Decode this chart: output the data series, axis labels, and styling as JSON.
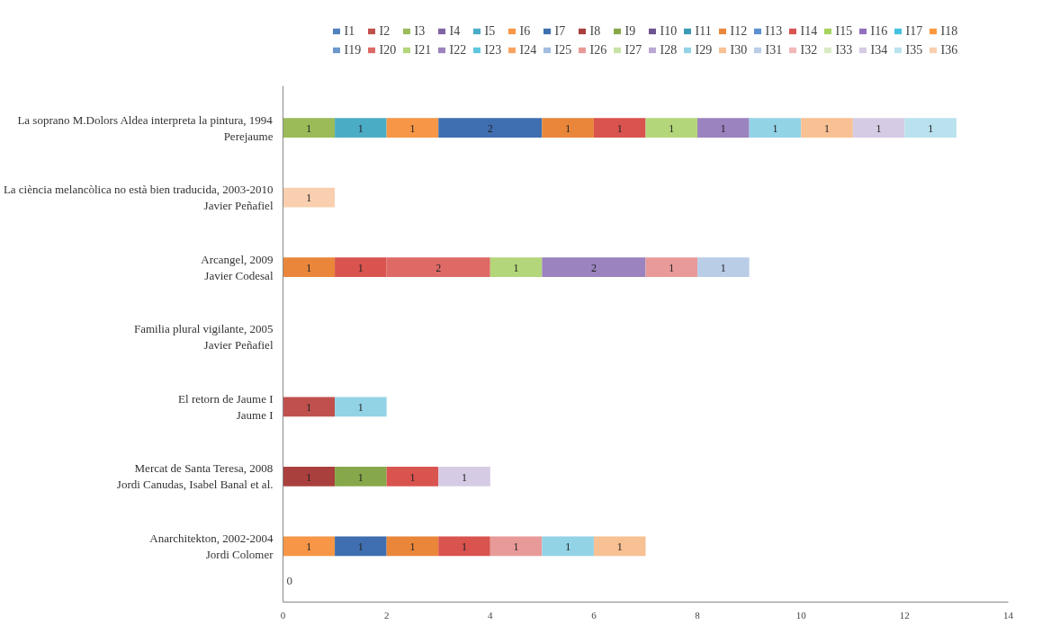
{
  "chart_data": {
    "type": "bar",
    "orientation": "horizontal",
    "stacked": true,
    "data_labels": true,
    "legend": "top",
    "grid": false,
    "categories": [
      "La soprano M.Dolors Aldea interpreta la pintura, 1994\nPerejaume",
      "La ciència melancòlica no està bien traducida, 2003-2010\nJavier Peñafiel",
      "Arcangel, 2009\nJavier Codesal",
      "Familia plural vigilante, 2005\nJavier Peñafiel",
      "El retorn de Jaume I\nJaume I",
      "Mercat de Santa Teresa, 2008\nJordi Canudas, Isabel Banal et al.",
      "Anarchitekton, 2002-2004\nJordi Colomer"
    ],
    "xlim": [
      0,
      14
    ],
    "xticks": [
      0,
      2,
      4,
      6,
      8,
      10,
      12,
      14
    ],
    "annotations": [
      "0"
    ],
    "series": [
      {
        "name": "I1",
        "color": "#4f81bd",
        "values": [
          null,
          null,
          null,
          null,
          null,
          null,
          null
        ]
      },
      {
        "name": "I2",
        "color": "#c0504d",
        "values": [
          null,
          null,
          null,
          null,
          1,
          null,
          null
        ]
      },
      {
        "name": "I3",
        "color": "#9bbb59",
        "values": [
          1,
          null,
          null,
          null,
          null,
          null,
          null
        ]
      },
      {
        "name": "I4",
        "color": "#8064a2",
        "values": [
          null,
          null,
          null,
          null,
          null,
          null,
          null
        ]
      },
      {
        "name": "I5",
        "color": "#4bacc6",
        "values": [
          1,
          null,
          null,
          null,
          null,
          null,
          null
        ]
      },
      {
        "name": "I6",
        "color": "#f79646",
        "values": [
          1,
          null,
          null,
          null,
          null,
          null,
          1
        ]
      },
      {
        "name": "I7",
        "color": "#3f6fb0",
        "values": [
          2,
          null,
          null,
          null,
          null,
          null,
          1
        ]
      },
      {
        "name": "I8",
        "color": "#a9403d",
        "values": [
          null,
          null,
          null,
          null,
          null,
          1,
          null
        ]
      },
      {
        "name": "I9",
        "color": "#86a84a",
        "values": [
          null,
          null,
          null,
          null,
          null,
          1,
          null
        ]
      },
      {
        "name": "I10",
        "color": "#6d5391",
        "values": [
          null,
          null,
          null,
          null,
          null,
          null,
          null
        ]
      },
      {
        "name": "I11",
        "color": "#3a9ab5",
        "values": [
          null,
          null,
          null,
          null,
          null,
          null,
          null
        ]
      },
      {
        "name": "I12",
        "color": "#e9863a",
        "values": [
          1,
          null,
          1,
          null,
          null,
          null,
          1
        ]
      },
      {
        "name": "I13",
        "color": "#5a8fd0",
        "values": [
          null,
          null,
          null,
          null,
          null,
          null,
          null
        ]
      },
      {
        "name": "I14",
        "color": "#d9534f",
        "values": [
          1,
          null,
          1,
          null,
          null,
          1,
          1
        ]
      },
      {
        "name": "I15",
        "color": "#a6d25e",
        "values": [
          null,
          null,
          null,
          null,
          null,
          null,
          null
        ]
      },
      {
        "name": "I16",
        "color": "#9270bd",
        "values": [
          null,
          null,
          null,
          null,
          null,
          null,
          null
        ]
      },
      {
        "name": "I17",
        "color": "#45c0de",
        "values": [
          null,
          null,
          null,
          null,
          null,
          null,
          null
        ]
      },
      {
        "name": "I18",
        "color": "#fa9a3c",
        "values": [
          null,
          null,
          null,
          null,
          null,
          null,
          null
        ]
      },
      {
        "name": "I19",
        "color": "#6d97cc",
        "values": [
          null,
          null,
          null,
          null,
          null,
          null,
          null
        ]
      },
      {
        "name": "I20",
        "color": "#de6a66",
        "values": [
          null,
          null,
          2,
          null,
          null,
          null,
          null
        ]
      },
      {
        "name": "I21",
        "color": "#b3d67a",
        "values": [
          1,
          null,
          1,
          null,
          null,
          null,
          null
        ]
      },
      {
        "name": "I22",
        "color": "#9a83bf",
        "values": [
          1,
          null,
          2,
          null,
          null,
          null,
          null
        ]
      },
      {
        "name": "I23",
        "color": "#5fc6df",
        "values": [
          null,
          null,
          null,
          null,
          null,
          null,
          null
        ]
      },
      {
        "name": "I24",
        "color": "#f7a35f",
        "values": [
          null,
          null,
          null,
          null,
          null,
          null,
          null
        ]
      },
      {
        "name": "I25",
        "color": "#a3bde0",
        "values": [
          null,
          null,
          null,
          null,
          null,
          null,
          null
        ]
      },
      {
        "name": "I26",
        "color": "#e89a98",
        "values": [
          null,
          null,
          1,
          null,
          null,
          null,
          1
        ]
      },
      {
        "name": "I27",
        "color": "#c8e2a5",
        "values": [
          null,
          null,
          null,
          null,
          null,
          null,
          null
        ]
      },
      {
        "name": "I28",
        "color": "#b9a9d3",
        "values": [
          null,
          null,
          null,
          null,
          null,
          null,
          null
        ]
      },
      {
        "name": "I29",
        "color": "#93d3e6",
        "values": [
          1,
          null,
          null,
          null,
          1,
          null,
          1
        ]
      },
      {
        "name": "I30",
        "color": "#f8c193",
        "values": [
          1,
          null,
          null,
          null,
          null,
          null,
          1
        ]
      },
      {
        "name": "I31",
        "color": "#b9cde7",
        "values": [
          null,
          null,
          1,
          null,
          null,
          null,
          null
        ]
      },
      {
        "name": "I32",
        "color": "#f0b9b8",
        "values": [
          null,
          null,
          null,
          null,
          null,
          null,
          null
        ]
      },
      {
        "name": "I33",
        "color": "#d8ebc4",
        "values": [
          null,
          null,
          null,
          null,
          null,
          null,
          null
        ]
      },
      {
        "name": "I34",
        "color": "#d5cbe4",
        "values": [
          1,
          null,
          null,
          null,
          null,
          1,
          null
        ]
      },
      {
        "name": "I35",
        "color": "#b9e2ee",
        "values": [
          1,
          null,
          null,
          null,
          null,
          null,
          null
        ]
      },
      {
        "name": "I36",
        "color": "#f9cfb0",
        "values": [
          null,
          1,
          null,
          null,
          null,
          null,
          null
        ]
      }
    ]
  }
}
